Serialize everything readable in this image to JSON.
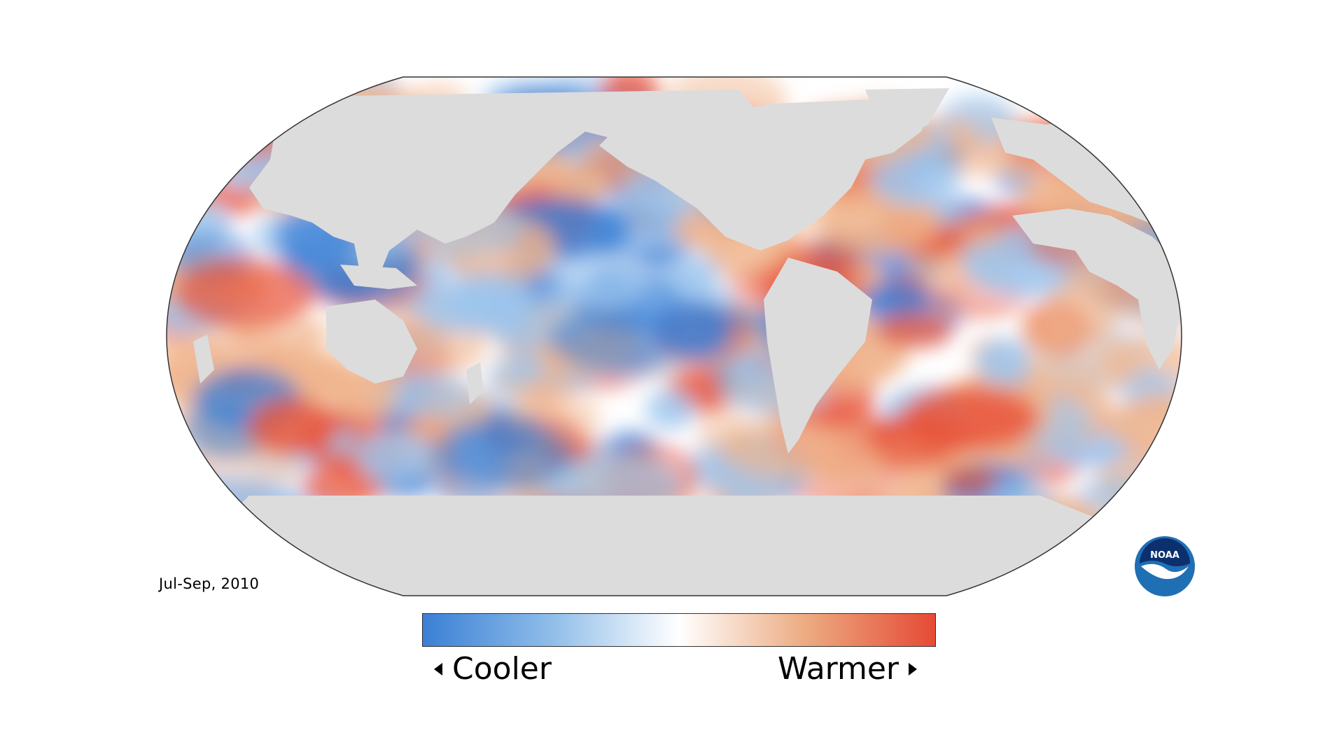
{
  "map": {
    "type": "sea-surface temperature anomaly map",
    "projection": "Robinson (Pacific-centered)",
    "land_color": "#dcdcdc",
    "ocean_colormap": [
      "#3a7fd5",
      "#9cc5ee",
      "#ffffff",
      "#f0b48c",
      "#e8543a"
    ]
  },
  "period": "Jul-Sep, 2010",
  "legend": {
    "cooler": "Cooler",
    "warmer": "Warmer",
    "gradient": [
      "#3a7fd5",
      "#8fbde9",
      "#ffffff",
      "#ecaa80",
      "#e54a35"
    ]
  },
  "logo": {
    "text": "NOAA",
    "colors": {
      "outer": "#1f6fb5",
      "inner": "#0c2f6e",
      "bird": "#ffffff"
    }
  }
}
